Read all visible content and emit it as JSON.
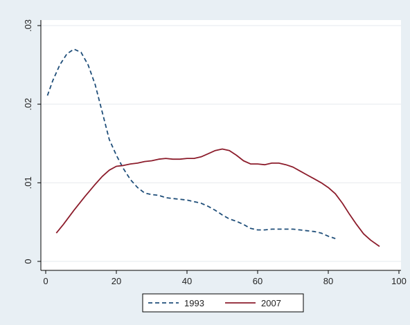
{
  "chart_data": {
    "type": "line",
    "title": "",
    "xlabel": "",
    "ylabel": "",
    "xlim": [
      0,
      100
    ],
    "ylim": [
      0,
      0.03
    ],
    "x_ticks": [
      0,
      20,
      40,
      60,
      80,
      100
    ],
    "x_tick_labels": [
      "0",
      "20",
      "40",
      "60",
      "80",
      "100"
    ],
    "y_ticks": [
      0,
      0.01,
      0.02,
      0.03
    ],
    "y_tick_labels": [
      "0",
      ".01",
      ".02",
      ".03"
    ],
    "grid": true,
    "legend_position": "bottom",
    "series": [
      {
        "name": "1993",
        "color": "#1f4e79",
        "dash": "dashed",
        "x": [
          0.5,
          2,
          4,
          6,
          8,
          10,
          12,
          14,
          16,
          18,
          20,
          22,
          24,
          26,
          28,
          30,
          32,
          34,
          36,
          38,
          40,
          42,
          44,
          46,
          48,
          50,
          52,
          54,
          56,
          58,
          60,
          62,
          64,
          66,
          68,
          70,
          72,
          74,
          76,
          78,
          80,
          82
        ],
        "y": [
          0.0211,
          0.023,
          0.025,
          0.0264,
          0.027,
          0.0266,
          0.025,
          0.0225,
          0.019,
          0.0155,
          0.0135,
          0.0118,
          0.0104,
          0.0094,
          0.0087,
          0.0085,
          0.0084,
          0.0081,
          0.008,
          0.0079,
          0.0078,
          0.0076,
          0.0074,
          0.007,
          0.0065,
          0.0059,
          0.0054,
          0.0051,
          0.0047,
          0.0042,
          0.004,
          0.004,
          0.0041,
          0.0041,
          0.0041,
          0.0041,
          0.004,
          0.0039,
          0.0038,
          0.0036,
          0.0032,
          0.0029
        ]
      },
      {
        "name": "2007",
        "color": "#8c1c2b",
        "dash": "solid",
        "x": [
          3,
          5,
          8,
          11,
          14,
          16,
          18,
          20,
          22,
          24,
          26,
          28,
          30,
          32,
          34,
          36,
          38,
          40,
          42,
          44,
          46,
          48,
          50,
          52,
          54,
          56,
          58,
          60,
          62,
          64,
          66,
          68,
          70,
          72,
          74,
          76,
          78,
          80,
          82,
          84,
          86,
          88,
          90,
          92,
          94.5
        ],
        "y": [
          0.0036,
          0.0047,
          0.0065,
          0.0082,
          0.0098,
          0.0108,
          0.0116,
          0.0121,
          0.0122,
          0.0124,
          0.0125,
          0.0127,
          0.0128,
          0.013,
          0.0131,
          0.013,
          0.013,
          0.0131,
          0.0131,
          0.0133,
          0.0137,
          0.0141,
          0.0143,
          0.0141,
          0.0135,
          0.0128,
          0.0124,
          0.0124,
          0.0123,
          0.0125,
          0.0125,
          0.0123,
          0.012,
          0.0115,
          0.011,
          0.0105,
          0.01,
          0.0094,
          0.0086,
          0.0074,
          0.006,
          0.0047,
          0.0035,
          0.0027,
          0.0019
        ]
      }
    ]
  }
}
